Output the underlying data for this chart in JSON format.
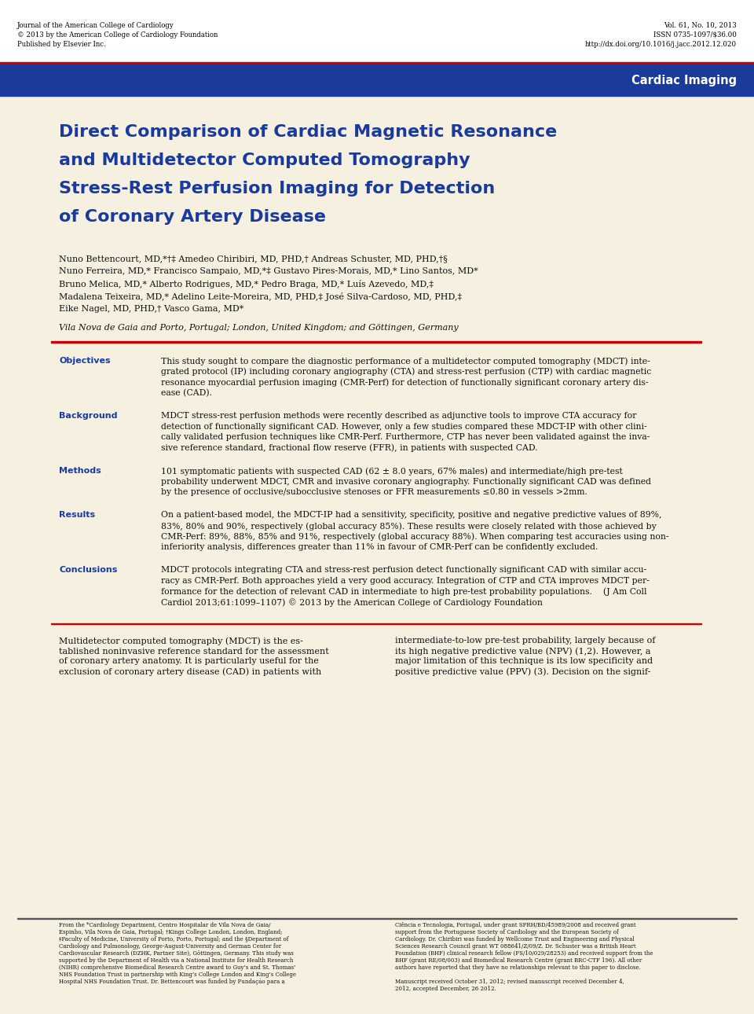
{
  "header_left_lines": [
    "Journal of the American College of Cardiology",
    "© 2013 by the American College of Cardiology Foundation",
    "Published by Elsevier Inc."
  ],
  "header_right_lines": [
    "Vol. 61, No. 10, 2013",
    "ISSN 0735-1097/$36.00",
    "http://dx.doi.org/10.1016/j.jacc.2012.12.020"
  ],
  "banner_color": "#1a3a9c",
  "banner_red_line_color": "#cc0000",
  "banner_text": "Cardiac Imaging",
  "banner_text_color": "#ffffff",
  "bg_color": "#f5f0e0",
  "white_color": "#ffffff",
  "title_lines": [
    "Direct Comparison of Cardiac Magnetic Resonance",
    "and Multidetector Computed Tomography",
    "Stress-Rest Perfusion Imaging for Detection",
    "of Coronary Artery Disease"
  ],
  "title_color": "#1a3a9c",
  "authors_lines": [
    "Nuno Bettencourt, MD,*†‡ Amedeo Chiribiri, MD, PHD,† Andreas Schuster, MD, PHD,†§",
    "Nuno Ferreira, MD,* Francisco Sampaio, MD,*‡ Gustavo Pires-Morais, MD,* Lino Santos, MD*",
    "Bruno Melica, MD,* Alberto Rodrigues, MD,* Pedro Braga, MD,* Luís Azevedo, MD,‡",
    "Madalena Teixeira, MD,* Adelino Leite-Moreira, MD, PHD,‡ José Silva-Cardoso, MD, PHD,‡",
    "Eike Nagel, MD, PHD,† Vasco Gama, MD*"
  ],
  "affiliation_line": "Vila Nova de Gaia and Porto, Portugal; London, United Kingdom; and Göttingen, Germany",
  "abstract_sections": [
    {
      "label": "Objectives",
      "text": "This study sought to compare the diagnostic performance of a multidetector computed tomography (MDCT) inte-\ngrated protocol (IP) including coronary angiography (CTA) and stress-rest perfusion (CTP) with cardiac magnetic\nresonance myocardial perfusion imaging (CMR-Perf) for detection of functionally significant coronary artery dis-\nease (CAD)."
    },
    {
      "label": "Background",
      "text": "MDCT stress-rest perfusion methods were recently described as adjunctive tools to improve CTA accuracy for\ndetection of functionally significant CAD. However, only a few studies compared these MDCT-IP with other clini-\ncally validated perfusion techniques like CMR-Perf. Furthermore, CTP has never been validated against the inva-\nsive reference standard, fractional flow reserve (FFR), in patients with suspected CAD."
    },
    {
      "label": "Methods",
      "text": "101 symptomatic patients with suspected CAD (62 ± 8.0 years, 67% males) and intermediate/high pre-test\nprobability underwent MDCT, CMR and invasive coronary angiography. Functionally significant CAD was defined\nby the presence of occlusive/subocclusive stenoses or FFR measurements ≤0.80 in vessels >2mm."
    },
    {
      "label": "Results",
      "text": "On a patient-based model, the MDCT-IP had a sensitivity, specificity, positive and negative predictive values of 89%,\n83%, 80% and 90%, respectively (global accuracy 85%). These results were closely related with those achieved by\nCMR-Perf: 89%, 88%, 85% and 91%, respectively (global accuracy 88%). When comparing test accuracies using non-\ninferiority analysis, differences greater than 11% in favour of CMR-Perf can be confidently excluded."
    },
    {
      "label": "Conclusions",
      "text": "MDCT protocols integrating CTA and stress-rest perfusion detect functionally significant CAD with similar accu-\nracy as CMR-Perf. Both approaches yield a very good accuracy. Integration of CTP and CTA improves MDCT per-\nformance for the detection of relevant CAD in intermediate to high pre-test probability populations.    (J Am Coll\nCardiol 2013;61:1099–1107) © 2013 by the American College of Cardiology Foundation"
    }
  ],
  "abstract_label_color": "#1a3a9c",
  "separator_color": "#cc0000",
  "body_col1": "Multidetector computed tomography (MDCT) is the es-\ntablished noninvasive reference standard for the assessment\nof coronary artery anatomy. It is particularly useful for the\nexclusion of coronary artery disease (CAD) in patients with",
  "body_col2": "intermediate-to-low pre-test probability, largely because of\nits high negative predictive value (NPV) (1,2). However, a\nmajor limitation of this technique is its low specificity and\npositive predictive value (PPV) (3). Decision on the signif-",
  "footer_col1": "From the *Cardiology Department, Centro Hospitalar de Vila Nova de Gaia/\nEspinho, Vila Nova de Gaia, Portugal; †Kings College London, London, England;\n‡Faculty of Medicine, University of Porto, Porto, Portugal; and the §Department of\nCardiology and Pulmonology, George-August-University and German Center for\nCardiovascular Research (DZHK, Partner Site), Göttingen, Germany. This study was\nsupported by the Department of Health via a National Institute for Health Research\n(NIHR) comprehensive Biomedical Research Centre award to Guy’s and St. Thomas’\nNHS Foundation Trust in partnership with King’s College London and King’s College\nHospital NHS Foundation Trust. Dr. Bettencourt was funded by Fundação para a",
  "footer_col2": "Ciência e Tecnologia, Portugal, under grant SFRH/BD/45989/2008 and received grant\nsupport from the Portuguese Society of Cardiology and the European Society of\nCardiology. Dr. Chiribiri was funded by Wellcome Trust and Engineering and Physical\nSciences Research Council grant WT 088641/Z/09/Z. Dr. Schuster was a British Heart\nFoundation (BHF) clinical research fellow (FS/10/029/28253) and received support from the\nBHF (grant RE/08/003) and Biomedical Research Centre (grant BRC-CTF 196). All other\nauthors have reported that they have no relationships relevant to this paper to disclose.\n\nManuscript received October 31, 2012; revised manuscript received December 4,\n2012, accepted December, 26 2012."
}
